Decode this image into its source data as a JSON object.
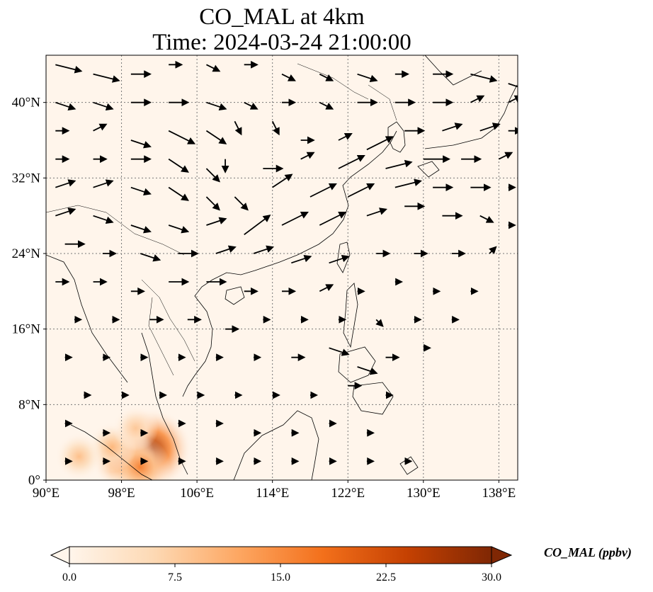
{
  "title": {
    "line1": "CO_MAL at 4km",
    "line2": "Time: 2024-03-24 21:00:00"
  },
  "map": {
    "lon_range": [
      90,
      140
    ],
    "lat_range": [
      0,
      45
    ],
    "lon_ticks": [
      {
        "value": 90,
        "label": "90°E"
      },
      {
        "value": 98,
        "label": "98°E"
      },
      {
        "value": 106,
        "label": "106°E"
      },
      {
        "value": 114,
        "label": "114°E"
      },
      {
        "value": 122,
        "label": "122°E"
      },
      {
        "value": 130,
        "label": "130°E"
      },
      {
        "value": 138,
        "label": "138°E"
      }
    ],
    "lat_ticks": [
      {
        "value": 0,
        "label": "0°"
      },
      {
        "value": 8,
        "label": "8°N"
      },
      {
        "value": 16,
        "label": "16°N"
      },
      {
        "value": 24,
        "label": "24°N"
      },
      {
        "value": 32,
        "label": "32°N"
      },
      {
        "value": 40,
        "label": "40°N"
      }
    ],
    "gridlines": true,
    "background_color": "#fff5eb",
    "hotspots": [
      {
        "lon": 101.2,
        "lat": 3.3,
        "value": 27
      },
      {
        "lon": 98.2,
        "lat": 2.3,
        "value": 18
      },
      {
        "lon": 100.0,
        "lat": 1.4,
        "value": 16
      },
      {
        "lon": 97.0,
        "lat": 3.5,
        "value": 10
      },
      {
        "lon": 93.5,
        "lat": 2.5,
        "value": 9
      },
      {
        "lon": 99.5,
        "lat": 5.5,
        "value": 8
      }
    ],
    "wind_vectors": [
      {
        "lon": 91,
        "lat": 44,
        "u": 4,
        "v": -1
      },
      {
        "lon": 95,
        "lat": 43,
        "u": 4,
        "v": -1
      },
      {
        "lon": 99,
        "lat": 43,
        "u": 3,
        "v": 0
      },
      {
        "lon": 103,
        "lat": 44,
        "u": 2,
        "v": 0
      },
      {
        "lon": 107,
        "lat": 44,
        "u": 2,
        "v": -1
      },
      {
        "lon": 111,
        "lat": 44,
        "u": 2,
        "v": 0
      },
      {
        "lon": 115,
        "lat": 43,
        "u": 2,
        "v": -1
      },
      {
        "lon": 119,
        "lat": 43,
        "u": 2,
        "v": -1
      },
      {
        "lon": 123,
        "lat": 43,
        "u": 3,
        "v": -1
      },
      {
        "lon": 127,
        "lat": 43,
        "u": 2,
        "v": 0
      },
      {
        "lon": 131,
        "lat": 43,
        "u": 3,
        "v": 0
      },
      {
        "lon": 135,
        "lat": 43,
        "u": 4,
        "v": -1
      },
      {
        "lon": 139,
        "lat": 42,
        "u": 3,
        "v": -1
      },
      {
        "lon": 91,
        "lat": 40,
        "u": 3,
        "v": -1
      },
      {
        "lon": 95,
        "lat": 40,
        "u": 3,
        "v": -1
      },
      {
        "lon": 99,
        "lat": 40,
        "u": 3,
        "v": 0
      },
      {
        "lon": 103,
        "lat": 40,
        "u": 3,
        "v": 0
      },
      {
        "lon": 107,
        "lat": 40,
        "u": 3,
        "v": -1
      },
      {
        "lon": 111,
        "lat": 40,
        "u": 2,
        "v": -1
      },
      {
        "lon": 115,
        "lat": 40,
        "u": 2,
        "v": 0
      },
      {
        "lon": 119,
        "lat": 40,
        "u": 2,
        "v": -1
      },
      {
        "lon": 123,
        "lat": 40,
        "u": 3,
        "v": 0
      },
      {
        "lon": 127,
        "lat": 40,
        "u": 3,
        "v": 0
      },
      {
        "lon": 131,
        "lat": 40,
        "u": 3,
        "v": 0
      },
      {
        "lon": 135,
        "lat": 40,
        "u": 2,
        "v": 1
      },
      {
        "lon": 139,
        "lat": 40,
        "u": 2,
        "v": 1
      },
      {
        "lon": 91,
        "lat": 37,
        "u": 2,
        "v": 0
      },
      {
        "lon": 95,
        "lat": 37,
        "u": 2,
        "v": 1
      },
      {
        "lon": 99,
        "lat": 36,
        "u": 3,
        "v": -1
      },
      {
        "lon": 103,
        "lat": 37,
        "u": 4,
        "v": -2
      },
      {
        "lon": 107,
        "lat": 37,
        "u": 3,
        "v": -2
      },
      {
        "lon": 110,
        "lat": 38,
        "u": 1,
        "v": -2
      },
      {
        "lon": 114,
        "lat": 38,
        "u": 1,
        "v": -2
      },
      {
        "lon": 117,
        "lat": 36,
        "u": 2,
        "v": 0
      },
      {
        "lon": 121,
        "lat": 36,
        "u": 2,
        "v": 1
      },
      {
        "lon": 124,
        "lat": 35,
        "u": 4,
        "v": 2
      },
      {
        "lon": 128,
        "lat": 37,
        "u": 3,
        "v": 0
      },
      {
        "lon": 132,
        "lat": 37,
        "u": 3,
        "v": 1
      },
      {
        "lon": 136,
        "lat": 37,
        "u": 3,
        "v": 1
      },
      {
        "lon": 139,
        "lat": 37,
        "u": 2,
        "v": 0
      },
      {
        "lon": 91,
        "lat": 34,
        "u": 2,
        "v": 0
      },
      {
        "lon": 95,
        "lat": 34,
        "u": 2,
        "v": 0
      },
      {
        "lon": 99,
        "lat": 34,
        "u": 3,
        "v": 0
      },
      {
        "lon": 103,
        "lat": 34,
        "u": 3,
        "v": -2
      },
      {
        "lon": 107,
        "lat": 33,
        "u": 2,
        "v": -2
      },
      {
        "lon": 109,
        "lat": 34,
        "u": 0,
        "v": -2
      },
      {
        "lon": 113,
        "lat": 33,
        "u": 3,
        "v": 0
      },
      {
        "lon": 117,
        "lat": 34,
        "u": 2,
        "v": 1
      },
      {
        "lon": 121,
        "lat": 33,
        "u": 4,
        "v": 2
      },
      {
        "lon": 126,
        "lat": 33,
        "u": 4,
        "v": 1
      },
      {
        "lon": 130,
        "lat": 34,
        "u": 4,
        "v": 0
      },
      {
        "lon": 134,
        "lat": 34,
        "u": 3,
        "v": 0
      },
      {
        "lon": 138,
        "lat": 34,
        "u": 2,
        "v": 1
      },
      {
        "lon": 91,
        "lat": 31,
        "u": 3,
        "v": 1
      },
      {
        "lon": 95,
        "lat": 31,
        "u": 3,
        "v": 1
      },
      {
        "lon": 99,
        "lat": 31,
        "u": 3,
        "v": -1
      },
      {
        "lon": 103,
        "lat": 31,
        "u": 3,
        "v": -2
      },
      {
        "lon": 107,
        "lat": 30,
        "u": 2,
        "v": -2
      },
      {
        "lon": 110,
        "lat": 30,
        "u": 2,
        "v": -2
      },
      {
        "lon": 114,
        "lat": 31,
        "u": 3,
        "v": 2
      },
      {
        "lon": 118,
        "lat": 30,
        "u": 4,
        "v": 2
      },
      {
        "lon": 122,
        "lat": 30,
        "u": 4,
        "v": 2
      },
      {
        "lon": 127,
        "lat": 31,
        "u": 4,
        "v": 1
      },
      {
        "lon": 131,
        "lat": 31,
        "u": 3,
        "v": 0
      },
      {
        "lon": 135,
        "lat": 31,
        "u": 3,
        "v": 0
      },
      {
        "lon": 139,
        "lat": 31,
        "u": 1,
        "v": 0
      },
      {
        "lon": 91,
        "lat": 28,
        "u": 3,
        "v": 1
      },
      {
        "lon": 95,
        "lat": 28,
        "u": 3,
        "v": -1
      },
      {
        "lon": 99,
        "lat": 27,
        "u": 3,
        "v": -1
      },
      {
        "lon": 103,
        "lat": 27,
        "u": 3,
        "v": -1
      },
      {
        "lon": 107,
        "lat": 27,
        "u": 3,
        "v": 1
      },
      {
        "lon": 111,
        "lat": 26,
        "u": 4,
        "v": 3
      },
      {
        "lon": 115,
        "lat": 27,
        "u": 4,
        "v": 2
      },
      {
        "lon": 119,
        "lat": 27,
        "u": 4,
        "v": 2
      },
      {
        "lon": 124,
        "lat": 28,
        "u": 3,
        "v": 1
      },
      {
        "lon": 128,
        "lat": 29,
        "u": 3,
        "v": 0
      },
      {
        "lon": 132,
        "lat": 28,
        "u": 3,
        "v": 0
      },
      {
        "lon": 136,
        "lat": 28,
        "u": 2,
        "v": -1
      },
      {
        "lon": 139,
        "lat": 27,
        "u": 1,
        "v": 0
      },
      {
        "lon": 92,
        "lat": 25,
        "u": 3,
        "v": 0
      },
      {
        "lon": 96,
        "lat": 24,
        "u": 2,
        "v": 0
      },
      {
        "lon": 100,
        "lat": 24,
        "u": 3,
        "v": -1
      },
      {
        "lon": 104,
        "lat": 24,
        "u": 3,
        "v": 0
      },
      {
        "lon": 108,
        "lat": 24,
        "u": 3,
        "v": 1
      },
      {
        "lon": 112,
        "lat": 24,
        "u": 3,
        "v": 1
      },
      {
        "lon": 116,
        "lat": 23,
        "u": 3,
        "v": 1
      },
      {
        "lon": 120,
        "lat": 23,
        "u": 3,
        "v": 1
      },
      {
        "lon": 125,
        "lat": 24,
        "u": 2,
        "v": 0
      },
      {
        "lon": 129,
        "lat": 24,
        "u": 2,
        "v": 0
      },
      {
        "lon": 133,
        "lat": 24,
        "u": 2,
        "v": 0
      },
      {
        "lon": 137,
        "lat": 24,
        "u": 1,
        "v": 1
      },
      {
        "lon": 91,
        "lat": 21,
        "u": 2,
        "v": 0
      },
      {
        "lon": 95,
        "lat": 21,
        "u": 2,
        "v": 0
      },
      {
        "lon": 99,
        "lat": 20,
        "u": 2,
        "v": 0
      },
      {
        "lon": 103,
        "lat": 21,
        "u": 3,
        "v": 0
      },
      {
        "lon": 107,
        "lat": 21,
        "u": 3,
        "v": 0
      },
      {
        "lon": 111,
        "lat": 20,
        "u": 2,
        "v": 0
      },
      {
        "lon": 115,
        "lat": 20,
        "u": 2,
        "v": 0
      },
      {
        "lon": 119,
        "lat": 20,
        "u": 2,
        "v": 1
      },
      {
        "lon": 123,
        "lat": 20,
        "u": 1,
        "v": 0
      },
      {
        "lon": 127,
        "lat": 21,
        "u": 1,
        "v": 0
      },
      {
        "lon": 131,
        "lat": 20,
        "u": 1,
        "v": 0
      },
      {
        "lon": 135,
        "lat": 20,
        "u": 1,
        "v": 0
      },
      {
        "lon": 93,
        "lat": 17,
        "u": 1,
        "v": 0
      },
      {
        "lon": 97,
        "lat": 17,
        "u": 1,
        "v": 0
      },
      {
        "lon": 101,
        "lat": 17,
        "u": 2,
        "v": 0
      },
      {
        "lon": 105,
        "lat": 17,
        "u": 2,
        "v": 0
      },
      {
        "lon": 109,
        "lat": 16,
        "u": 2,
        "v": 0
      },
      {
        "lon": 113,
        "lat": 17,
        "u": 1,
        "v": 0
      },
      {
        "lon": 117,
        "lat": 17,
        "u": 1,
        "v": 0
      },
      {
        "lon": 121,
        "lat": 17,
        "u": 1,
        "v": 0
      },
      {
        "lon": 125,
        "lat": 17,
        "u": 1,
        "v": -1
      },
      {
        "lon": 129,
        "lat": 17,
        "u": 1,
        "v": 0
      },
      {
        "lon": 133,
        "lat": 17,
        "u": 1,
        "v": 0
      },
      {
        "lon": 92,
        "lat": 13,
        "u": 1,
        "v": 0
      },
      {
        "lon": 96,
        "lat": 13,
        "u": 1,
        "v": 0
      },
      {
        "lon": 100,
        "lat": 13,
        "u": 1,
        "v": 0
      },
      {
        "lon": 104,
        "lat": 13,
        "u": 1,
        "v": 0
      },
      {
        "lon": 108,
        "lat": 13,
        "u": 1,
        "v": 0
      },
      {
        "lon": 112,
        "lat": 13,
        "u": 1,
        "v": 0
      },
      {
        "lon": 116,
        "lat": 13,
        "u": 2,
        "v": 0
      },
      {
        "lon": 120,
        "lat": 14,
        "u": 3,
        "v": -1
      },
      {
        "lon": 123,
        "lat": 12,
        "u": 3,
        "v": -1
      },
      {
        "lon": 126,
        "lat": 13,
        "u": 2,
        "v": 0
      },
      {
        "lon": 130,
        "lat": 14,
        "u": 1,
        "v": 0
      },
      {
        "lon": 94,
        "lat": 9,
        "u": 1,
        "v": 0
      },
      {
        "lon": 98,
        "lat": 9,
        "u": 1,
        "v": 0
      },
      {
        "lon": 102,
        "lat": 9,
        "u": 1,
        "v": 0
      },
      {
        "lon": 106,
        "lat": 9,
        "u": 1,
        "v": 0
      },
      {
        "lon": 110,
        "lat": 9,
        "u": 1,
        "v": 0
      },
      {
        "lon": 114,
        "lat": 9,
        "u": 1,
        "v": 0
      },
      {
        "lon": 118,
        "lat": 9,
        "u": 1,
        "v": 0
      },
      {
        "lon": 122,
        "lat": 10,
        "u": 2,
        "v": 0
      },
      {
        "lon": 126,
        "lat": 9,
        "u": 1,
        "v": 0
      },
      {
        "lon": 92,
        "lat": 6,
        "u": 1,
        "v": 0
      },
      {
        "lon": 96,
        "lat": 5,
        "u": 1,
        "v": 0
      },
      {
        "lon": 100,
        "lat": 5,
        "u": 1,
        "v": 0
      },
      {
        "lon": 104,
        "lat": 6,
        "u": 1,
        "v": 0
      },
      {
        "lon": 108,
        "lat": 6,
        "u": 1,
        "v": 0
      },
      {
        "lon": 112,
        "lat": 5,
        "u": 1,
        "v": 0
      },
      {
        "lon": 116,
        "lat": 5,
        "u": 1,
        "v": 0
      },
      {
        "lon": 120,
        "lat": 6,
        "u": 1,
        "v": 0
      },
      {
        "lon": 124,
        "lat": 5,
        "u": 1,
        "v": 0
      },
      {
        "lon": 92,
        "lat": 2,
        "u": 1,
        "v": 0
      },
      {
        "lon": 96,
        "lat": 2,
        "u": 1,
        "v": 0
      },
      {
        "lon": 100,
        "lat": 2,
        "u": 1,
        "v": 0
      },
      {
        "lon": 104,
        "lat": 2,
        "u": 1,
        "v": 0
      },
      {
        "lon": 108,
        "lat": 2,
        "u": 1,
        "v": 0
      },
      {
        "lon": 112,
        "lat": 2,
        "u": 1,
        "v": 0
      },
      {
        "lon": 116,
        "lat": 2,
        "u": 1,
        "v": 0
      },
      {
        "lon": 120,
        "lat": 2,
        "u": 1,
        "v": 0
      },
      {
        "lon": 124,
        "lat": 2,
        "u": 1,
        "v": 0
      },
      {
        "lon": 128,
        "lat": 2,
        "u": 1,
        "v": 0
      }
    ]
  },
  "colorbar": {
    "title": "CO_MAL (ppbv)",
    "min": 0.0,
    "max": 30.0,
    "extend": "both",
    "ticks": [
      {
        "value": 0.0,
        "label": "0.0"
      },
      {
        "value": 7.5,
        "label": "7.5"
      },
      {
        "value": 15.0,
        "label": "15.0"
      },
      {
        "value": 22.5,
        "label": "22.5"
      },
      {
        "value": 30.0,
        "label": "30.0"
      }
    ],
    "colors": [
      "#fff5eb",
      "#fdd9b4",
      "#fda762",
      "#f3701b",
      "#c54102",
      "#7f2704"
    ]
  }
}
